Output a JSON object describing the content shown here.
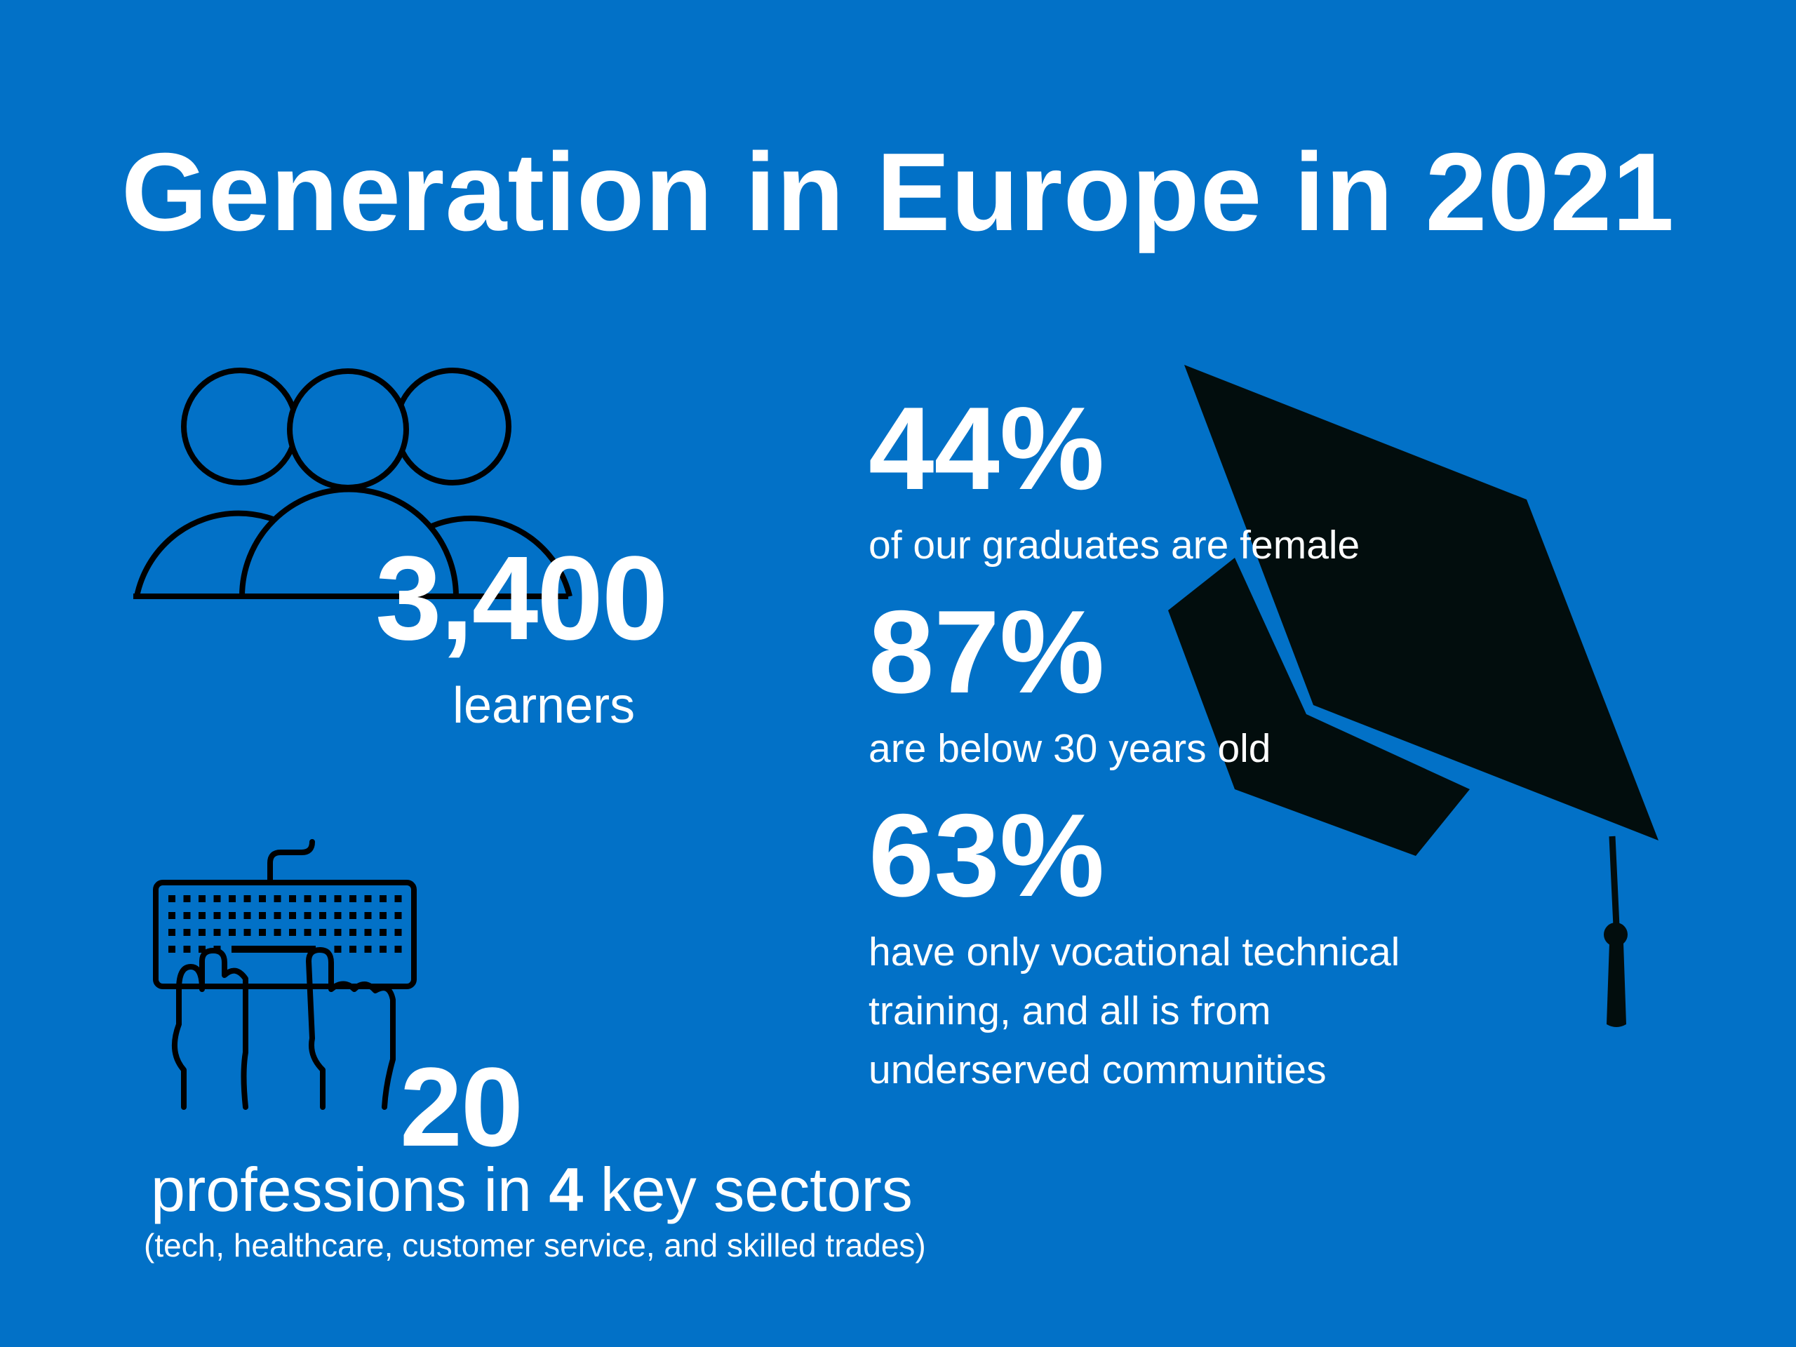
{
  "title": "Generation in Europe in 2021",
  "learners": {
    "value": "3,400",
    "label": "learners"
  },
  "stats": [
    {
      "value": "44%",
      "label": "of our graduates are female"
    },
    {
      "value": "87%",
      "label": "are below 30 years old"
    },
    {
      "value": "63%",
      "label_lines": [
        "have only vocational technical",
        "training, and all is from",
        "underserved communities"
      ]
    }
  ],
  "professions": {
    "value": "20",
    "text_before": "professions in ",
    "sector_count": "4",
    "text_after": " key sectors",
    "sectors_note": "(tech, healthcare, customer service, and skilled trades)"
  },
  "icons": [
    "people-group-icon",
    "keyboard-hands-icon",
    "graduation-cap-icon"
  ],
  "colors": {
    "background": "#0271c7",
    "text": "#ffffff",
    "icon": "#000000"
  }
}
